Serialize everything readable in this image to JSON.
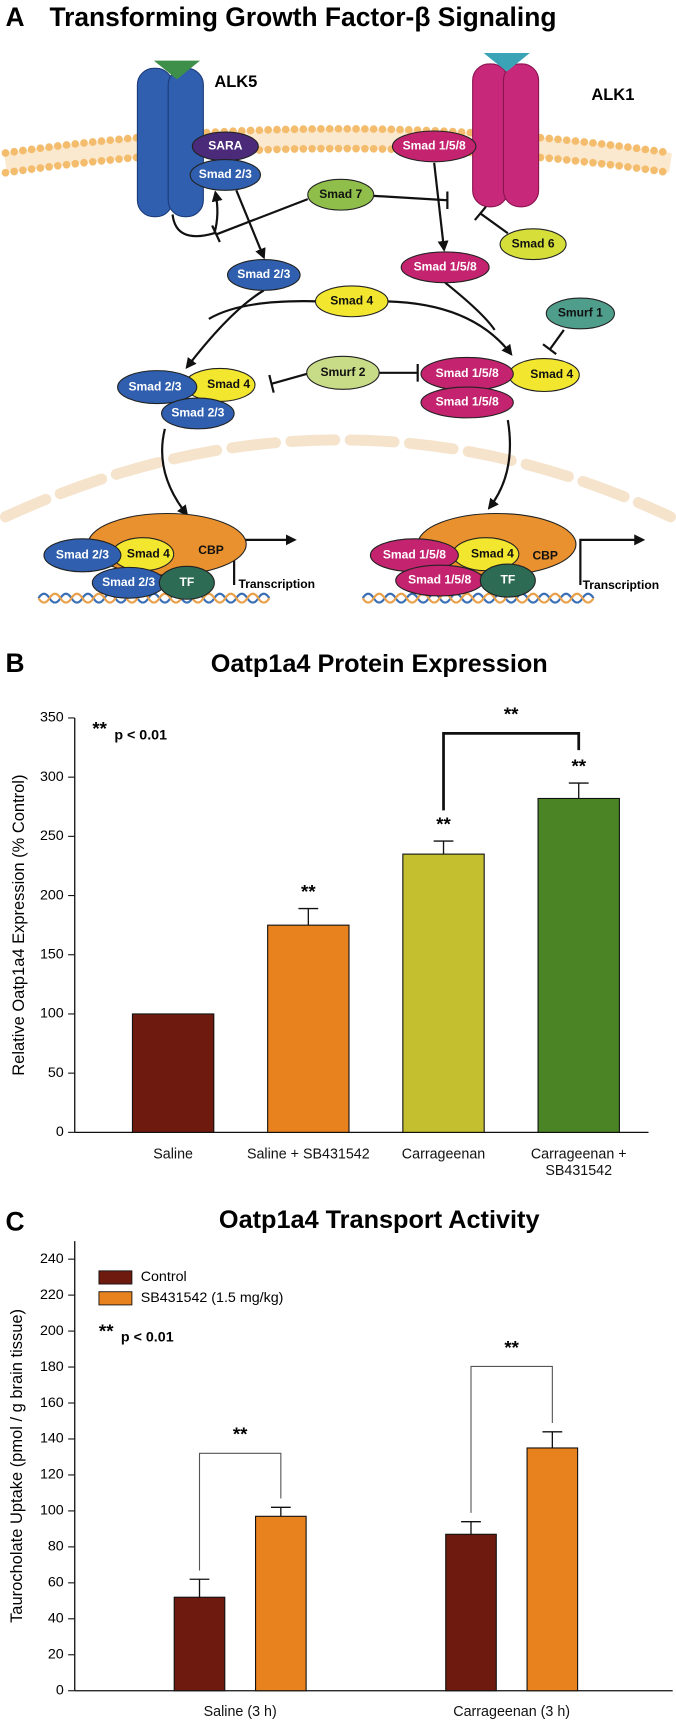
{
  "diagram": {
    "panel_label": "A",
    "title": "Transforming Growth Factor-β Signaling",
    "receptors": [
      "ALK5",
      "ALK1"
    ],
    "nodes": [
      "SARA",
      "Smad 2/3",
      "Smad 1/5/8",
      "Smad 7",
      "Smad 6",
      "Smad 2/3",
      "Smad 1/5/8",
      "Smad 4",
      "Smurf 1",
      "Smad 4",
      "Smad 2/3",
      "Smad 2/3",
      "Smurf 2",
      "Smad 1/5/8",
      "Smad 4",
      "Smad 1/5/8",
      "CBP",
      "Smad 4",
      "Smad 2/3",
      "Smad 2/3",
      "TF",
      "CBP",
      "Smad 4",
      "Smad 1/5/8",
      "Smad 1/5/8",
      "TF"
    ],
    "transcription": [
      "Transcription",
      "Transcription"
    ]
  },
  "chart_data": [
    {
      "type": "bar",
      "panel_label": "B",
      "title": "Oatp1a4 Protein Expression",
      "y_label": "Relative Oatp1a4 Expression (% Control)",
      "categories": [
        "Saline",
        "Saline + SB431542",
        "Carrageenan",
        "Carrageenan + SB431542"
      ],
      "values": [
        100,
        175,
        235,
        282
      ],
      "errors": [
        null,
        14,
        11,
        13
      ],
      "colors": [
        "#6e1a0e",
        "#e8821e",
        "#c4bf2e",
        "#4a8424"
      ],
      "ylim": [
        0,
        350
      ],
      "yticks": [
        0,
        50,
        100,
        150,
        200,
        250,
        300,
        350
      ],
      "significance_note": {
        "marker": "**",
        "text": "p < 0.01"
      },
      "bar_annotations": [
        null,
        "**",
        "**",
        "**"
      ],
      "bracket_labels": [
        "**"
      ]
    },
    {
      "type": "bar",
      "panel_label": "C",
      "title": "Oatp1a4 Transport Activity",
      "y_label": "Taurocholate Uptake (pmol / g brain tissue)",
      "categories": [
        "Saline (3 h)",
        "Carrageenan (3 h)"
      ],
      "series": [
        {
          "name": "Control",
          "color": "#6e1a0e",
          "values": [
            52,
            87
          ],
          "errors": [
            10,
            7
          ]
        },
        {
          "name": "SB431542 (1.5 mg/kg)",
          "color": "#e8821e",
          "values": [
            97,
            135
          ],
          "errors": [
            5,
            9
          ]
        }
      ],
      "ylim": [
        0,
        250
      ],
      "yticks": [
        0,
        20,
        40,
        60,
        80,
        100,
        120,
        140,
        160,
        180,
        200,
        220,
        240
      ],
      "legend": "upper left",
      "significance_note": {
        "marker": "**",
        "text": "p < 0.01"
      },
      "bracket_labels": [
        "**",
        "**"
      ]
    }
  ]
}
